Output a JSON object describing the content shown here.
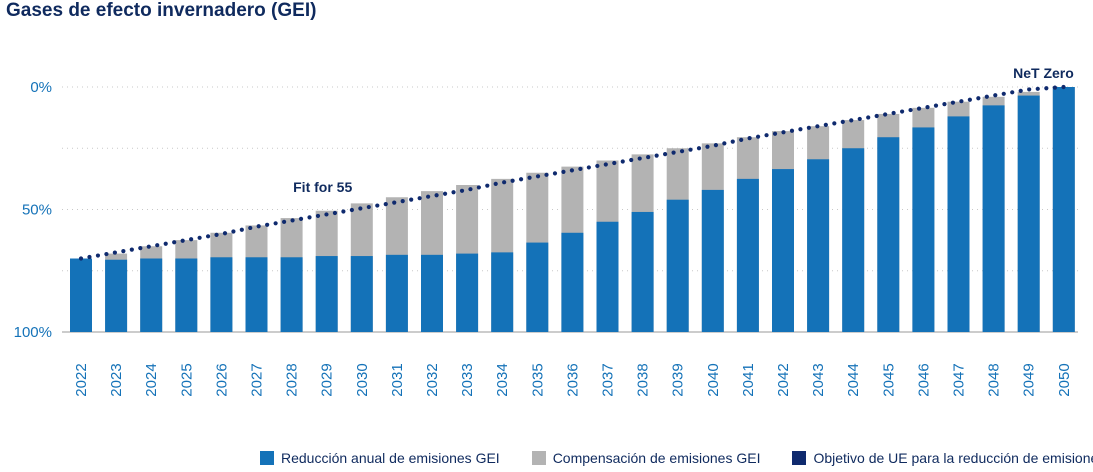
{
  "chart_data": {
    "type": "bar",
    "title": "Gases de efecto invernadero (GEI)",
    "categories": [
      "2022",
      "2023",
      "2024",
      "2025",
      "2026",
      "2027",
      "2028",
      "2029",
      "2030",
      "2031",
      "2032",
      "2033",
      "2034",
      "2035",
      "2036",
      "2037",
      "2038",
      "2039",
      "2040",
      "2041",
      "2042",
      "2043",
      "2044",
      "2045",
      "2046",
      "2047",
      "2048",
      "2049",
      "2050"
    ],
    "ylim": [
      0,
      100
    ],
    "y_inverted": true,
    "y_ticks": [
      {
        "value": 0,
        "label": "0%"
      },
      {
        "value": 50,
        "label": "50%"
      },
      {
        "value": 100,
        "label": "100%"
      }
    ],
    "series": [
      {
        "name": "Reducción anual de emisiones GEI",
        "color": "#1472b8",
        "values": [
          70,
          70.5,
          70,
          70,
          69.5,
          69.5,
          69.5,
          69,
          69,
          68.5,
          68.5,
          68,
          67.5,
          63.5,
          59.5,
          55,
          51,
          46,
          42,
          37.5,
          33.5,
          29.5,
          25,
          20.5,
          16.5,
          12,
          7.5,
          3.5,
          0
        ]
      },
      {
        "name": "Compensación de emisiones GEI",
        "color": "#b3b3b3",
        "values": [
          70,
          68,
          65,
          62.5,
          59.5,
          56.5,
          53.5,
          50.5,
          47.5,
          45,
          42.5,
          40,
          37.5,
          35,
          32.5,
          30,
          27.5,
          25,
          23,
          20.5,
          18,
          16,
          13.5,
          11,
          8.5,
          6,
          4,
          2,
          0
        ]
      },
      {
        "name": "Objetivo de UE para la reducción de emisiones GEI",
        "color": "#0f2a6e",
        "values": [
          70,
          67.5,
          65,
          62.5,
          60,
          57,
          54.5,
          52,
          49.5,
          47,
          44.5,
          42,
          39,
          36.5,
          34,
          31.5,
          29,
          26.5,
          24,
          21,
          18.5,
          16,
          13.5,
          11,
          8.5,
          6,
          3.5,
          1,
          0
        ]
      }
    ],
    "annotations": [
      {
        "text": "Fit for 55",
        "category": "2029"
      },
      {
        "text": "NeT Zero",
        "category": "2050"
      }
    ],
    "grid": true,
    "legend_position": "bottom-right"
  }
}
